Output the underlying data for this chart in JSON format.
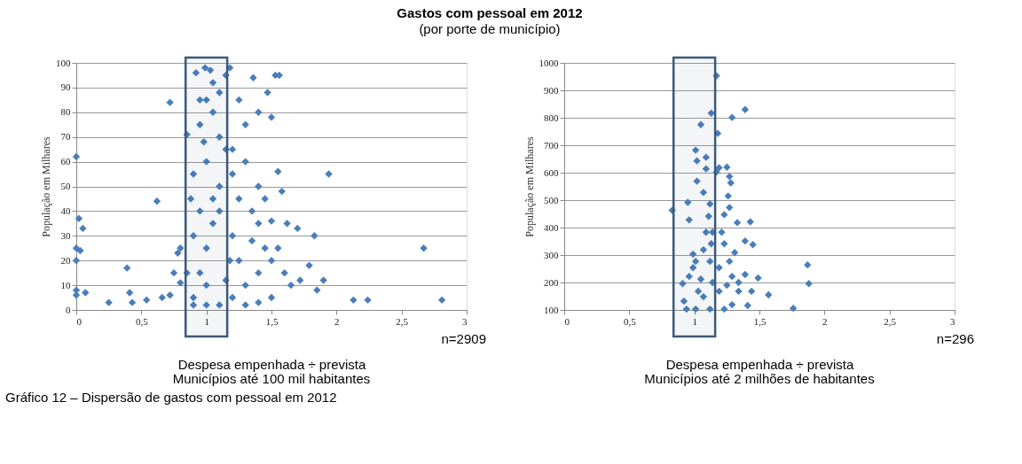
{
  "chart_data": [
    {
      "type": "scatter",
      "title": "Gastos com pessoal em 2012",
      "subtitle": "(por porte de município)",
      "xlabel": "Despesa empenhada ÷ prevista",
      "ylabel": "População em Milhares",
      "xlim": [
        0,
        3
      ],
      "xticks": [
        0,
        {
          "value": 0.5,
          "label": "0,5"
        },
        1,
        {
          "value": 1.5,
          "label": "1,5"
        },
        2,
        {
          "value": 2.5,
          "label": "2,5"
        },
        3
      ],
      "ylim": [
        0,
        100
      ],
      "yticks": [
        0,
        10,
        20,
        30,
        40,
        50,
        60,
        70,
        80,
        90,
        100
      ],
      "grid": "y",
      "marker": "diamond",
      "bands": [
        {
          "axis": "x",
          "from": 0.84,
          "to": 1.16,
          "label": null,
          "color": "#3b5a78"
        }
      ],
      "annotations": [
        "n=2909",
        "Municípios até 100 mil habitantes",
        "Gráfico 12 – Dispersão de gastos com pessoal em 2012"
      ],
      "series": [
        {
          "color": "#4a7ebb",
          "x": [
            0,
            0.02,
            0.05,
            0,
            0.03,
            0,
            0,
            0,
            0.07,
            0.25,
            0.39,
            0.41,
            0.43,
            0.54,
            0.62,
            0.72,
            0.66,
            0.85,
            0.92,
            0.99,
            1.03,
            1.18,
            1.36,
            1.53,
            1.56,
            1.4,
            1.5,
            1.47,
            1.94,
            2.67,
            2.81,
            2.13,
            2.24,
            1.9,
            1.79,
            1.83,
            1.85,
            1.7,
            1.58,
            1.55,
            1.62,
            1.72,
            0.78,
            0.8,
            0.72,
            0.9,
            0.88,
            1.05,
            0.9,
            0.95,
            1.0,
            1.05,
            1.1,
            1.0,
            1.1,
            1.05,
            1.1,
            1.2,
            1.25,
            1.3,
            1.35,
            1.4,
            1.45,
            1.2,
            1.3,
            0.95,
            0.9,
            1.0,
            1.15,
            1.2,
            1.1,
            1.0,
            0.9,
            1.3,
            1.4,
            1.5,
            1.25,
            1.15,
            0.95,
            1.0,
            1.25,
            1.3,
            1.2,
            1.4,
            1.45,
            1.5,
            1.55,
            1.6,
            1.65,
            1.5,
            0.85,
            0.8,
            0.75,
            1.15,
            1.05,
            0.95,
            0.98,
            1.1,
            1.18,
            1.35,
            1.4
          ],
          "values": [
            62,
            37,
            33,
            25,
            24,
            20,
            8,
            6,
            7,
            3,
            17,
            7,
            3,
            4,
            44,
            84,
            5,
            71,
            96,
            98,
            97,
            98,
            94,
            95,
            95,
            80,
            78,
            88,
            55,
            25,
            4,
            4,
            4,
            12,
            18,
            30,
            8,
            33,
            48,
            56,
            35,
            12,
            23,
            11,
            6,
            55,
            45,
            45,
            5,
            15,
            25,
            35,
            50,
            60,
            70,
            80,
            88,
            30,
            20,
            10,
            40,
            15,
            25,
            55,
            60,
            40,
            30,
            10,
            12,
            5,
            2,
            2,
            2,
            2,
            3,
            5,
            45,
            65,
            75,
            85,
            85,
            75,
            65,
            50,
            45,
            36,
            25,
            15,
            10,
            20,
            15,
            25,
            15,
            95,
            92,
            85,
            68,
            40,
            20,
            28,
            35
          ]
        }
      ]
    },
    {
      "type": "scatter",
      "xlabel": "Despesa empenhada ÷ prevista",
      "ylabel": "População em Milhares",
      "xlim": [
        0,
        3
      ],
      "xticks": [
        0,
        {
          "value": 0.5,
          "label": "0,5"
        },
        1,
        {
          "value": 1.5,
          "label": "1,5"
        },
        2,
        {
          "value": 2.5,
          "label": "2,5"
        },
        3
      ],
      "ylim": [
        100,
        1000
      ],
      "yticks": [
        100,
        200,
        300,
        400,
        500,
        600,
        700,
        800,
        900,
        1000
      ],
      "grid": "y",
      "marker": "diamond",
      "bands": [
        {
          "axis": "x",
          "from": 0.84,
          "to": 1.16,
          "label": null,
          "color": "#3b5a78"
        }
      ],
      "annotations": [
        "n=296",
        "Municípios até 2 milhões de habitantes"
      ],
      "series": [
        {
          "color": "#4a7ebb",
          "x": [
            1.17,
            1.13,
            1.39,
            1.29,
            1.05,
            1.18,
            1.01,
            1.09,
            1.02,
            1.09,
            1.19,
            1.25,
            1.17,
            1.27,
            1.28,
            1.02,
            1.07,
            1.26,
            1.12,
            0.95,
            1.27,
            0.83,
            0.96,
            1.33,
            1.43,
            1.11,
            1.23,
            1.09,
            1.21,
            1.39,
            1.45,
            1.31,
            0.99,
            1.13,
            1.87,
            1.88,
            1.57,
            1.76,
            1.49,
            1.44,
            1.34,
            0.91,
            0.92,
            0.96,
            0.99,
            1.05,
            1.12,
            1.23,
            1.19,
            1.29,
            1.39,
            1.41,
            1.29,
            1.23,
            1.12,
            1.01,
            0.94,
            1.07,
            1.19,
            1.25,
            1.03,
            1.14,
            1.01,
            1.07,
            1.14,
            1.27,
            1.34
          ],
          "values": [
            953,
            817,
            830,
            801,
            775,
            743,
            682,
            656,
            643,
            614,
            618,
            620,
            602,
            586,
            563,
            569,
            528,
            515,
            486,
            492,
            473,
            463,
            428,
            418,
            421,
            441,
            447,
            383,
            383,
            351,
            338,
            309,
            303,
            341,
            264,
            196,
            155,
            106,
            216,
            168,
            168,
            196,
            132,
            222,
            254,
            212,
            277,
            341,
            254,
            222,
            229,
            116,
            119,
            103,
            103,
            103,
            103,
            148,
            168,
            190,
            168,
            200,
            277,
            319,
            383,
            277,
            200
          ]
        }
      ]
    }
  ]
}
